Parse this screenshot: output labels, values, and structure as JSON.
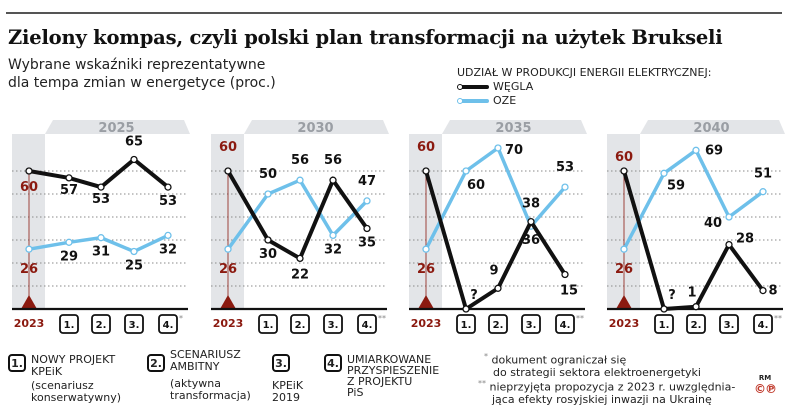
{
  "header": {
    "title": "Zielony kompas, czyli polski plan transformacji na użytek Brukseli",
    "subtitle_line1": "Wybrane wskaźniki reprezentatywne",
    "subtitle_line2": "dla tempa zmian w energetyce (proc.)"
  },
  "legend": {
    "heading": "UDZIAŁ W PRODUKCJI ENERGII ELEKTRYCZNEJ:",
    "items": [
      {
        "label": "WĘGLA",
        "color": "#111111"
      },
      {
        "label": "OZE",
        "color": "#6ec0ea"
      }
    ]
  },
  "colors": {
    "coal": "#111111",
    "oze": "#6ec0ea",
    "baseline_accent": "#8b1a10",
    "header_tab": "#e3e5e8",
    "baseline_column": "#e3e5e8",
    "tab_text": "#9a9ea4"
  },
  "chart_data": [
    {
      "type": "line",
      "title": "2025",
      "categories": [
        "2023",
        "1.",
        "2.",
        "3.",
        "4."
      ],
      "category_note": "*",
      "ylim": [
        0,
        70
      ],
      "grid": true,
      "series": [
        {
          "name": "WĘGLA",
          "values": [
            60,
            57,
            53,
            65,
            53
          ],
          "labels": [
            "60",
            "57",
            "53",
            "65",
            "53"
          ]
        },
        {
          "name": "OZE",
          "values": [
            26,
            29,
            31,
            25,
            32
          ],
          "labels": [
            "26",
            "29",
            "31",
            "25",
            "32"
          ]
        }
      ]
    },
    {
      "type": "line",
      "title": "2030",
      "categories": [
        "2023",
        "1.",
        "2.",
        "3.",
        "4."
      ],
      "category_note": "**",
      "ylim": [
        0,
        70
      ],
      "grid": true,
      "series": [
        {
          "name": "WĘGLA",
          "values": [
            60,
            30,
            22,
            56,
            35
          ],
          "labels": [
            "60",
            "30",
            "22",
            "56",
            "35"
          ]
        },
        {
          "name": "OZE",
          "values": [
            26,
            50,
            56,
            32,
            47
          ],
          "labels": [
            "26",
            "50",
            "56",
            "32",
            "47"
          ]
        }
      ]
    },
    {
      "type": "line",
      "title": "2035",
      "categories": [
        "2023",
        "1.",
        "2.",
        "3.",
        "4."
      ],
      "category_note": "**",
      "ylim": [
        0,
        70
      ],
      "grid": true,
      "series": [
        {
          "name": "WĘGLA",
          "values": [
            60,
            0,
            9,
            38,
            15
          ],
          "labels": [
            "60",
            "?",
            "9",
            "38",
            "15"
          ]
        },
        {
          "name": "OZE",
          "values": [
            26,
            60,
            70,
            36,
            53
          ],
          "labels": [
            "26",
            "60",
            "70",
            "36",
            "53"
          ]
        }
      ]
    },
    {
      "type": "line",
      "title": "2040",
      "categories": [
        "2023",
        "1.",
        "2.",
        "3.",
        "4."
      ],
      "category_note": "**",
      "ylim": [
        0,
        70
      ],
      "grid": true,
      "series": [
        {
          "name": "WĘGLA",
          "values": [
            60,
            0,
            1,
            28,
            8
          ],
          "labels": [
            "60",
            "?",
            "1",
            "28",
            "8"
          ]
        },
        {
          "name": "OZE",
          "values": [
            26,
            59,
            69,
            40,
            51
          ],
          "labels": [
            "26",
            "59",
            "69",
            "40",
            "51"
          ]
        }
      ]
    }
  ],
  "scenarios": [
    {
      "num": "1.",
      "line1": "NOWY PROJEKT",
      "line2": "KPEiK",
      "line3": "(scenariusz",
      "line4": "konserwatywny)"
    },
    {
      "num": "2.",
      "line1": "SCENARIUSZ",
      "line2": "AMBITNY",
      "line3": "(aktywna",
      "line4": "transformacja)"
    },
    {
      "num": "3.",
      "line1": "KPEiK",
      "line2": "2019"
    },
    {
      "num": "4.",
      "line1": "UMIARKOWANE",
      "line2": "PRZYSPIESZENIE",
      "line3": "Z PROJEKTU",
      "line4": "PiS"
    }
  ],
  "notes": [
    {
      "mark": "*",
      "line1": "dokument ograniczał się",
      "line2": "do strategii sektora elektroenergetyki"
    },
    {
      "mark": "**",
      "line1": "nieprzyjęta propozycja z 2023 r. uwzględnia-",
      "line2": "jąca efekty rosyjskiej inwazji na Ukrainę"
    }
  ],
  "credit": {
    "top": "RM",
    "bottom": "©℗"
  }
}
